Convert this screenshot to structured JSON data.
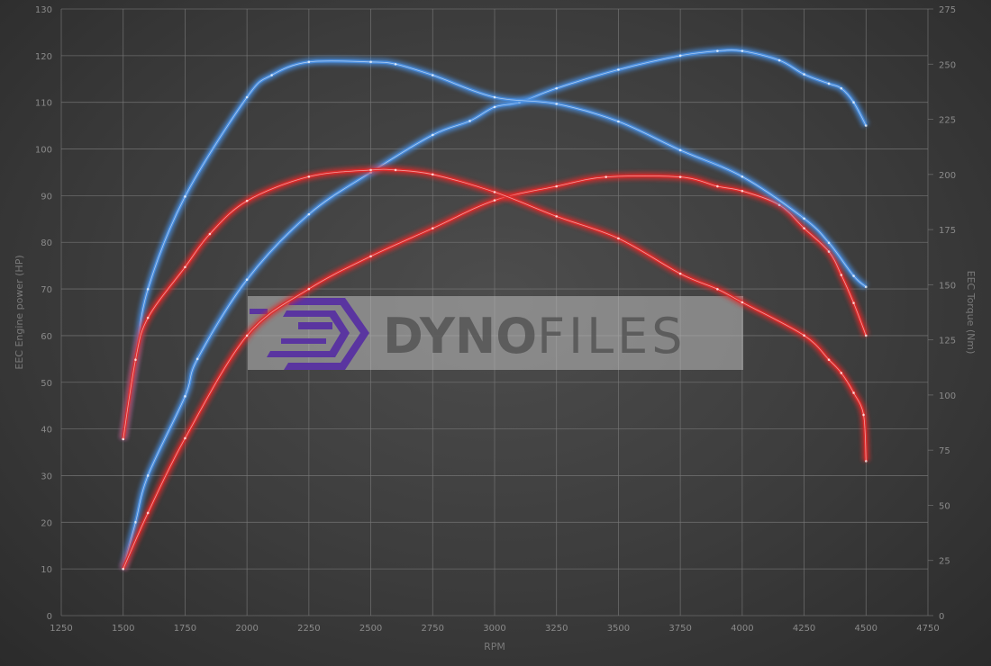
{
  "chart_data": {
    "type": "line",
    "title": "",
    "xlabel": "RPM",
    "ylabel_left": "EEC Engine power (HP)",
    "ylabel_right": "EEC Torque (Nm)",
    "xlim": [
      1250,
      4750
    ],
    "ylim_left": [
      0,
      130
    ],
    "ylim_right": [
      0,
      275
    ],
    "x_ticks": [
      1250,
      1500,
      1750,
      2000,
      2250,
      2500,
      2750,
      3000,
      3250,
      3500,
      3750,
      4000,
      4250,
      4500,
      4750
    ],
    "y_ticks_left": [
      0,
      10,
      20,
      30,
      40,
      50,
      60,
      70,
      80,
      90,
      100,
      110,
      120,
      130
    ],
    "y_ticks_right": [
      0,
      25,
      50,
      75,
      100,
      125,
      150,
      175,
      200,
      225,
      250,
      275
    ],
    "grid": true,
    "watermark": "DYNOFILES",
    "colors": {
      "blue": "#4a90e2",
      "red": "#e02a2a",
      "background": "#3c3c3c"
    },
    "series": [
      {
        "axis": "left",
        "color": "blue",
        "x": [
          1500,
          1550,
          1600,
          1750,
          1800,
          2000,
          2250,
          2500,
          2750,
          2900,
          3000,
          3100,
          3250,
          3500,
          3750,
          3900,
          4000,
          4150,
          4250,
          4350,
          4400,
          4450,
          4500
        ],
        "values": [
          10,
          20,
          30,
          47,
          55,
          72,
          86,
          95,
          103,
          106,
          109,
          110,
          113,
          117,
          120,
          121,
          121,
          119,
          116,
          114,
          113,
          110,
          105
        ]
      },
      {
        "axis": "left",
        "color": "red",
        "x": [
          1500,
          1600,
          1750,
          2000,
          2250,
          2500,
          2750,
          3000,
          3250,
          3450,
          3750,
          3900,
          4000,
          4150,
          4250,
          4350,
          4400,
          4450,
          4500
        ],
        "values": [
          10,
          22,
          38,
          60,
          70,
          77,
          83,
          89,
          92,
          94,
          94,
          92,
          91,
          88,
          83,
          78,
          73,
          67,
          60
        ]
      },
      {
        "axis": "right",
        "color": "blue",
        "x": [
          1500,
          1550,
          1600,
          1750,
          2000,
          2100,
          2250,
          2500,
          2600,
          2750,
          3000,
          3250,
          3500,
          3750,
          4000,
          4250,
          4350,
          4450,
          4500
        ],
        "values": [
          80,
          116,
          148,
          190,
          235,
          245,
          251,
          251,
          250,
          245,
          235,
          232,
          224,
          211,
          199,
          180,
          169,
          154,
          149
        ]
      },
      {
        "axis": "right",
        "color": "red",
        "x": [
          1500,
          1550,
          1600,
          1750,
          1850,
          2000,
          2250,
          2500,
          2600,
          2750,
          3000,
          3250,
          3500,
          3750,
          3900,
          4000,
          4250,
          4350,
          4400,
          4450,
          4490,
          4500
        ],
        "values": [
          80,
          116,
          135,
          158,
          173,
          188,
          199,
          202,
          202,
          200,
          192,
          181,
          171,
          155,
          148,
          142,
          127,
          116,
          110,
          101,
          91,
          70
        ]
      }
    ]
  }
}
